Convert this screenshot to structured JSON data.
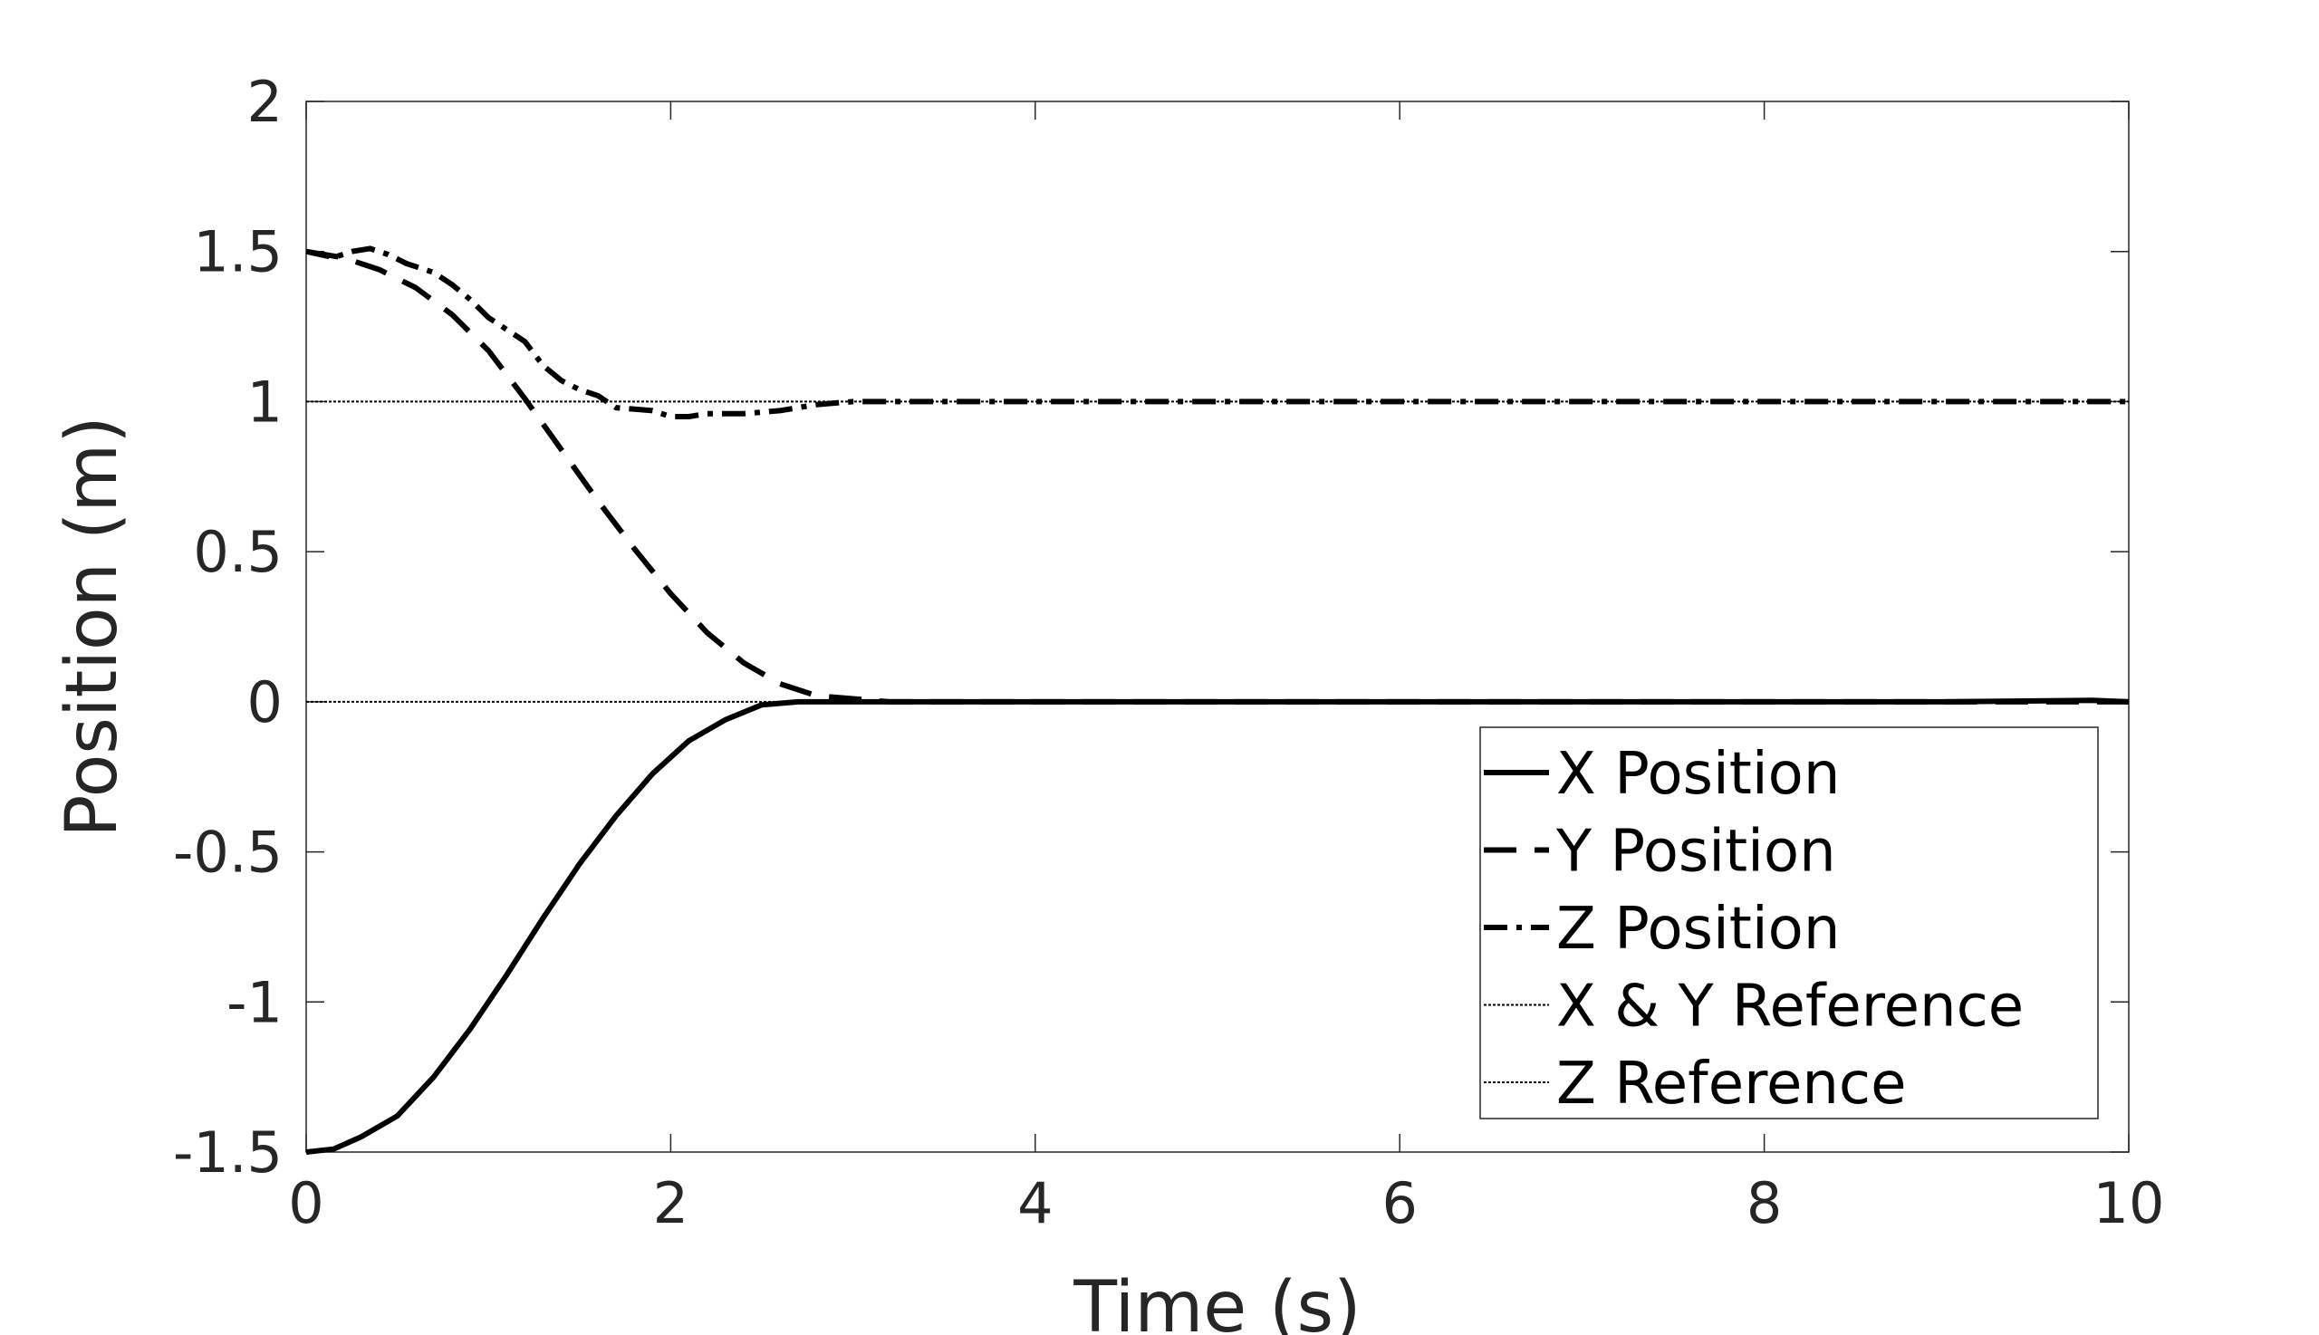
{
  "chart_data": {
    "type": "line",
    "title": "",
    "xlabel": "Time (s)",
    "ylabel": "Position (m)",
    "xlim": [
      0,
      10
    ],
    "ylim": [
      -1.5,
      2
    ],
    "xticks": [
      "0",
      "2",
      "4",
      "6",
      "8",
      "10"
    ],
    "yticks": [
      "-1.5",
      "-1",
      "-0.5",
      "0",
      "0.5",
      "1",
      "1.5",
      "2"
    ],
    "grid": false,
    "legend_position": "bottom-right",
    "series": [
      {
        "name": "X Position",
        "style": "solid",
        "x": [
          0,
          0.15,
          0.3,
          0.5,
          0.7,
          0.9,
          1.1,
          1.3,
          1.5,
          1.7,
          1.9,
          2.1,
          2.3,
          2.5,
          2.7,
          3.0,
          4,
          5,
          6,
          7,
          8,
          9,
          9.8,
          10
        ],
        "y": [
          -1.5,
          -1.49,
          -1.45,
          -1.38,
          -1.25,
          -1.09,
          -0.91,
          -0.72,
          -0.54,
          -0.38,
          -0.24,
          -0.13,
          -0.06,
          -0.01,
          0.0,
          0.0,
          0.0,
          0.0,
          0.0,
          0.0,
          0.0,
          0.0,
          0.005,
          0.0
        ]
      },
      {
        "name": "Y Position",
        "style": "dashed",
        "x": [
          0,
          0.2,
          0.4,
          0.6,
          0.8,
          1.0,
          1.2,
          1.4,
          1.6,
          1.8,
          2.0,
          2.2,
          2.4,
          2.6,
          2.8,
          3.0,
          3.2,
          4,
          5,
          6,
          7,
          8,
          9,
          10
        ],
        "y": [
          1.5,
          1.48,
          1.44,
          1.38,
          1.29,
          1.17,
          1.01,
          0.84,
          0.67,
          0.51,
          0.36,
          0.23,
          0.13,
          0.06,
          0.02,
          0.01,
          0.0,
          0.0,
          0.0,
          0.0,
          0.0,
          0.0,
          0.0,
          0.0
        ]
      },
      {
        "name": "Z Position",
        "style": "dashdot",
        "x": [
          0,
          0.15,
          0.25,
          0.35,
          0.45,
          0.55,
          0.7,
          0.8,
          0.9,
          1.0,
          1.2,
          1.3,
          1.4,
          1.5,
          1.6,
          1.7,
          1.9,
          2.0,
          2.1,
          2.2,
          2.4,
          2.6,
          2.8,
          3.0,
          3.5,
          4,
          5,
          6,
          7,
          8,
          9,
          9.5,
          10
        ],
        "y": [
          1.5,
          1.48,
          1.5,
          1.51,
          1.49,
          1.46,
          1.43,
          1.39,
          1.34,
          1.28,
          1.2,
          1.12,
          1.07,
          1.04,
          1.02,
          0.98,
          0.97,
          0.95,
          0.95,
          0.96,
          0.96,
          0.97,
          0.99,
          1.0,
          1.0,
          1.0,
          1.0,
          1.0,
          1.0,
          1.0,
          1.0,
          1.0,
          1.0
        ]
      },
      {
        "name": "X & Y Reference",
        "style": "dotted",
        "x": [
          0,
          10
        ],
        "y": [
          0,
          0
        ]
      },
      {
        "name": "Z Reference",
        "style": "dotted",
        "x": [
          0,
          10
        ],
        "y": [
          1,
          1
        ]
      }
    ]
  }
}
